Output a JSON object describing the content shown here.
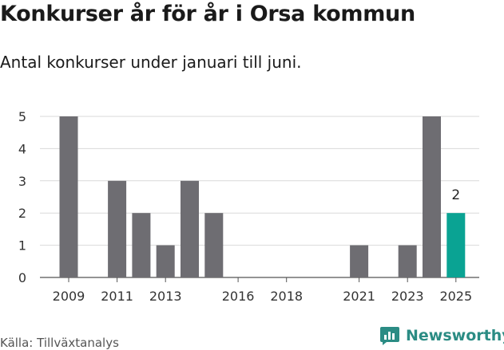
{
  "header": {
    "title": "Konkurser år för år i Orsa kommun",
    "subtitle": "Antal konkurser under januari till juni."
  },
  "footer": {
    "source": "Källa: Tillväxtanalys",
    "brand": "Newsworthy",
    "brand_icon": "bar-chart-speech-bubble-icon",
    "brand_color": "#2b8c84"
  },
  "chart_data": {
    "type": "bar",
    "x": [
      2009,
      2010,
      2011,
      2012,
      2013,
      2014,
      2015,
      2016,
      2017,
      2018,
      2019,
      2020,
      2021,
      2022,
      2023,
      2024,
      2025
    ],
    "values": [
      5,
      0,
      3,
      2,
      1,
      3,
      2,
      0,
      0,
      0,
      0,
      0,
      1,
      0,
      1,
      5,
      2
    ],
    "xticks": [
      2009,
      2011,
      2013,
      2016,
      2018,
      2021,
      2023,
      2025
    ],
    "yticks": [
      0,
      1,
      2,
      3,
      4,
      5
    ],
    "ylim": [
      0,
      5
    ],
    "grid": true,
    "bar_color": "#6e6d72",
    "highlight_color": "#0aa393",
    "highlight_x": 2025,
    "data_labels": [
      {
        "x": 2025,
        "text": "2"
      }
    ]
  }
}
